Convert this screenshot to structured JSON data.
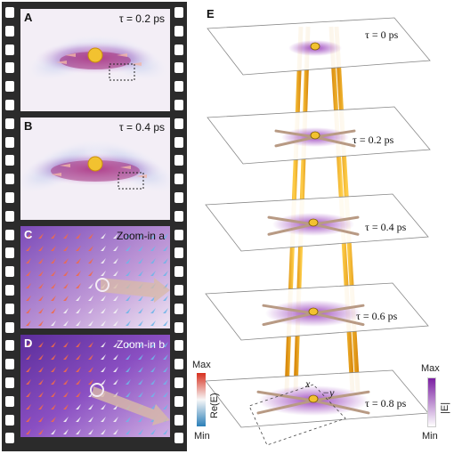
{
  "panels": {
    "A": {
      "label": "A",
      "text": "τ = 0.2 ps"
    },
    "B": {
      "label": "B",
      "text": "τ = 0.4 ps"
    },
    "C": {
      "label": "C",
      "text": "Zoom-in a"
    },
    "D": {
      "label": "D",
      "text": "Zoom-in b"
    },
    "E": {
      "label": "E"
    }
  },
  "planes": [
    "τ = 0 ps",
    "τ = 0.2 ps",
    "τ = 0.4 ps",
    "τ = 0.6 ps",
    "τ = 0.8 ps"
  ],
  "axes": {
    "x": "x",
    "y": "−y"
  },
  "colorbar_re": {
    "max": "Max",
    "min": "Min",
    "label": "Re(E)",
    "colors": [
      "#d7301f",
      "#f7f7f7",
      "#2c7fb8"
    ]
  },
  "colorbar_abs": {
    "max": "Max",
    "min": "Min",
    "label": "|E|",
    "colors": [
      "#7b1fa2",
      "#ffffff"
    ]
  },
  "colors": {
    "film": "#2b2b2b",
    "rod": "#f4a81d",
    "arrow": "#b89a84",
    "purple": "#8e2bb5"
  }
}
